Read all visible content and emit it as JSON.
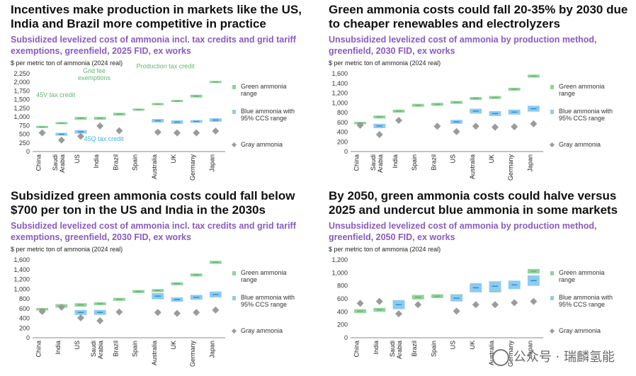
{
  "colors": {
    "green": "#8fd39a",
    "green_dark": "#5fb671",
    "blue": "#8dcbf1",
    "blue_dark": "#2f8fd0",
    "gray": "#9b9b9b",
    "title": "#8a5bbf",
    "callout": "#3ab4e6",
    "heading": "#111111"
  },
  "watermark": "公众号 · 瑞麟氢能",
  "chart_data": [
    {
      "type": "range",
      "title": "Incentives make production in markets like the US, India and Brazil more competitive in practice",
      "subtitle": "Subsidized levelized cost of ammonia incl. tax credits and grid tariff exemptions, greenfield, 2025 FID, ex works",
      "ylabel": "$ per metric ton of ammonia (2024 real)",
      "ylim": [
        0,
        2250
      ],
      "yticks": [
        0,
        250,
        500,
        750,
        1000,
        1250,
        1500,
        1750,
        2000,
        2250
      ],
      "categories": [
        "China",
        "Saudi Arabia",
        "US",
        "India",
        "Brazil",
        "Spain",
        "Australia",
        "UK",
        "Germany",
        "Japan"
      ],
      "series": [
        {
          "name": "Green ammonia range",
          "kind": "range",
          "low": [
            680,
            790,
            920,
            920,
            1040,
            1180,
            1340,
            1430,
            1560,
            1980
          ],
          "high": [
            740,
            850,
            1000,
            1000,
            1120,
            1240,
            1400,
            1490,
            1640,
            2040
          ]
        },
        {
          "name": "Blue ammonia with 95% CCS range",
          "kind": "range",
          "low": [
            null,
            460,
            520,
            null,
            null,
            null,
            840,
            800,
            830,
            860
          ],
          "high": [
            null,
            540,
            620,
            null,
            null,
            null,
            940,
            900,
            910,
            960
          ]
        },
        {
          "name": "Gray ammonia",
          "kind": "point",
          "values": [
            540,
            330,
            440,
            740,
            600,
            null,
            560,
            540,
            540,
            590
          ]
        }
      ],
      "annotations": [
        {
          "text": "Production tax credit",
          "color": "green",
          "cat": 6.9,
          "value": 2400
        },
        {
          "text": "Grid fee exemptions",
          "color": "green",
          "cat": 3.2,
          "value": 2270
        },
        {
          "text": "45V tax credit",
          "color": "green",
          "cat": 1.2,
          "value": 1580
        },
        {
          "text": "45Q tax credit",
          "color": "blue",
          "cat": 3.7,
          "value": 310
        }
      ]
    },
    {
      "type": "range",
      "title": "Green ammonia costs could fall 20-35% by 2030 due to cheaper renewables and electrolyzers",
      "subtitle": "Unsubsidized levelized cost of ammonia by production method, greenfield, 2030 FID, ex works",
      "ylabel": "$ per metric ton of ammonia (2024 real)",
      "ylim": [
        0,
        1600
      ],
      "yticks": [
        0,
        200,
        400,
        600,
        800,
        1000,
        1200,
        1400,
        1600
      ],
      "categories": [
        "China",
        "Saudi Arabia",
        "India",
        "Spain",
        "Brazil",
        "US",
        "Australia",
        "UK",
        "Germany",
        "Japan"
      ],
      "series": [
        {
          "name": "Green ammonia range",
          "kind": "range",
          "low": [
            560,
            680,
            800,
            920,
            940,
            980,
            1060,
            1080,
            1250,
            1520
          ],
          "high": [
            610,
            740,
            860,
            980,
            1000,
            1040,
            1120,
            1140,
            1310,
            1580
          ]
        },
        {
          "name": "Blue ammonia with 95% CCS range",
          "kind": "range",
          "low": [
            null,
            480,
            null,
            null,
            null,
            570,
            780,
            730,
            760,
            820
          ],
          "high": [
            null,
            570,
            null,
            null,
            null,
            650,
            880,
            830,
            860,
            940
          ]
        },
        {
          "name": "Gray ammonia",
          "kind": "point",
          "values": [
            540,
            350,
            640,
            null,
            520,
            410,
            520,
            500,
            510,
            570
          ]
        }
      ]
    },
    {
      "type": "range",
      "title": "Subsidized green ammonia costs could fall below $700 per ton in the US and India in the 2030s",
      "subtitle": "Subsidized levelized cost of ammonia incl. tax credits and grid tariff exemptions, greenfield, 2030 FID, ex works",
      "ylabel": "$ per metric ton of ammonia (2024 real)",
      "ylim": [
        0,
        1600
      ],
      "yticks": [
        0,
        200,
        400,
        600,
        800,
        1000,
        1200,
        1400,
        1600
      ],
      "categories": [
        "China",
        "India",
        "US",
        "Saudi Arabia",
        "Brazil",
        "Spain",
        "Australia",
        "UK",
        "Germany",
        "Japan"
      ],
      "series": [
        {
          "name": "Green ammonia range",
          "kind": "range",
          "low": [
            560,
            620,
            640,
            670,
            760,
            920,
            940,
            1080,
            1260,
            1520
          ],
          "high": [
            610,
            690,
            710,
            730,
            820,
            980,
            1000,
            1140,
            1320,
            1580
          ]
        },
        {
          "name": "Blue ammonia with 95% CCS range",
          "kind": "range",
          "low": [
            null,
            null,
            470,
            470,
            null,
            null,
            790,
            740,
            780,
            830
          ],
          "high": [
            null,
            null,
            570,
            570,
            null,
            null,
            920,
            830,
            880,
            950
          ]
        },
        {
          "name": "Gray ammonia",
          "kind": "point",
          "values": [
            540,
            630,
            410,
            350,
            530,
            null,
            520,
            500,
            520,
            570
          ]
        }
      ]
    },
    {
      "type": "range",
      "title": "By 2050, green ammonia costs could halve versus 2025 and undercut blue ammonia in some markets",
      "subtitle": "Unsubsidized levelized cost of ammonia by production method, greenfield, 2050 FID, ex works",
      "ylabel": "$ per metric ton of ammonia (2024 real)",
      "ylim": [
        0,
        1200
      ],
      "yticks": [
        0,
        200,
        400,
        600,
        800,
        1000,
        1200
      ],
      "categories": [
        "China",
        "India",
        "Saudi Arabia",
        "Brazil",
        "Spain",
        "US",
        "UK",
        "Australia",
        "Germany",
        "Japan"
      ],
      "series": [
        {
          "name": "Green ammonia range",
          "kind": "range",
          "low": [
            380,
            400,
            500,
            590,
            610,
            610,
            720,
            700,
            790,
            990
          ],
          "high": [
            440,
            460,
            560,
            660,
            670,
            670,
            780,
            760,
            850,
            1060
          ]
        },
        {
          "name": "Blue ammonia with 95% CCS range",
          "kind": "range",
          "low": [
            null,
            null,
            440,
            null,
            null,
            560,
            700,
            720,
            750,
            800
          ],
          "high": [
            null,
            null,
            580,
            null,
            null,
            660,
            840,
            870,
            880,
            960
          ]
        },
        {
          "name": "Gray ammonia",
          "kind": "point",
          "values": [
            530,
            560,
            370,
            510,
            null,
            410,
            510,
            510,
            540,
            560
          ]
        }
      ]
    }
  ]
}
